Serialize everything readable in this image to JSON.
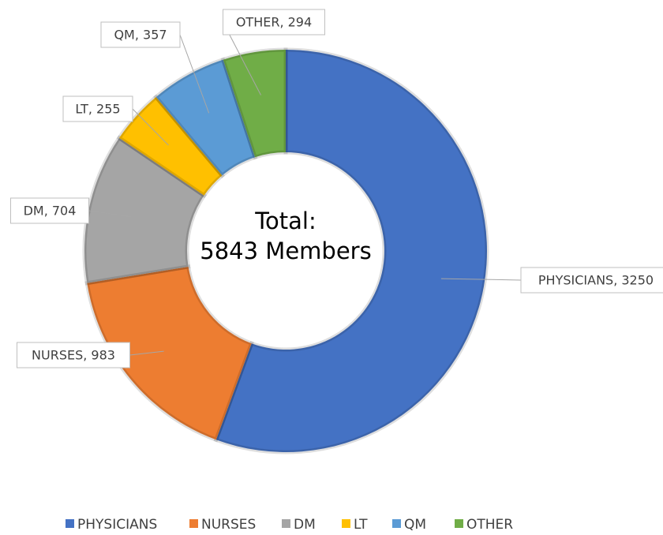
{
  "chart_data": {
    "type": "donut",
    "categories": [
      "PHYSICIANS",
      "NURSES",
      "DM",
      "LT",
      "QM",
      "OTHER"
    ],
    "values": [
      3250,
      983,
      704,
      255,
      357,
      294
    ],
    "value_labels": [
      "PHYSICIANS, 3250",
      "NURSES, 983",
      "DM, 704",
      "LT, 255",
      "QM, 357",
      "OTHER, 294"
    ],
    "colors": [
      "#4472c4",
      "#ed7d31",
      "#a5a5a5",
      "#ffc000",
      "#5b9bd5",
      "#70ad47"
    ],
    "center_text": [
      "Total:",
      "5843 Members"
    ],
    "legend": "bottom"
  }
}
